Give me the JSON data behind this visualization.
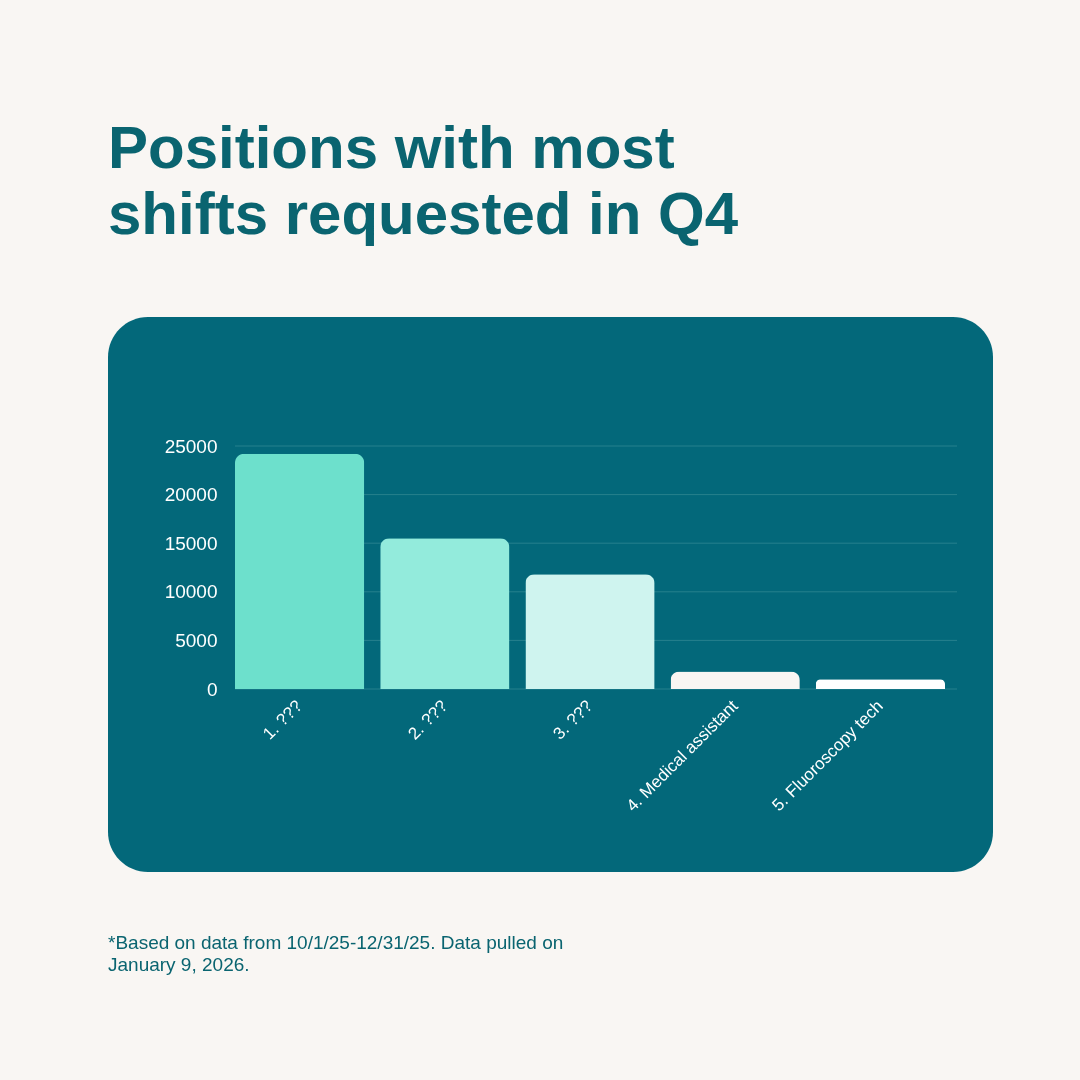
{
  "chart_data": {
    "type": "bar",
    "title": "Positions with most shifts requested in Q4",
    "categories": [
      "1. ???",
      "2. ???",
      "3. ???",
      "4. Medical assistant",
      "5. Fluoroscopy tech"
    ],
    "values": [
      24200,
      15500,
      11800,
      1800,
      1000
    ],
    "colors": [
      "#6de0cc",
      "#93ebdc",
      "#cff4ef",
      "#f9f6f3",
      "#ffffff"
    ],
    "ylim": [
      0,
      25000
    ],
    "yticks": [
      0,
      5000,
      10000,
      15000,
      20000,
      25000
    ],
    "grid": "y",
    "annotations": [
      "*Based on data from 10/1/25-12/31/25. Data pulled on January 9, 2026."
    ]
  }
}
